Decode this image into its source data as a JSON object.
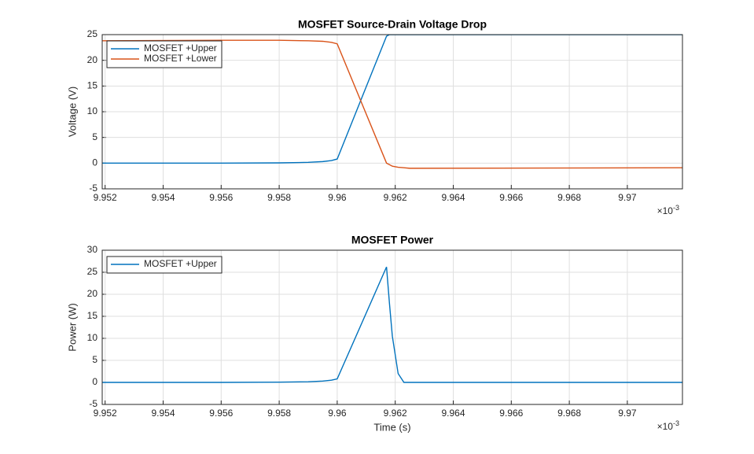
{
  "chart_data": [
    {
      "type": "line",
      "title": "MOSFET Source-Drain Voltage Drop",
      "y_label": "Voltage (V)",
      "x": [
        9.9519,
        9.956,
        9.958,
        9.959,
        9.9595,
        9.9598,
        9.96,
        9.9617,
        9.9618,
        9.9619,
        9.9621,
        9.9623,
        9.9625,
        9.9719
      ],
      "series": [
        {
          "name": "MOSFET +Upper",
          "color": "#0072BD",
          "values": [
            0,
            0,
            0.05,
            0.15,
            0.3,
            0.5,
            0.8,
            24.7,
            25,
            25,
            25,
            25,
            25,
            25
          ]
        },
        {
          "name": "MOSFET +Lower",
          "color": "#D95319",
          "values": [
            23.8,
            23.9,
            23.9,
            23.8,
            23.7,
            23.5,
            23.2,
            0,
            -0.3,
            -0.6,
            -0.8,
            -0.9,
            -1,
            -0.9
          ]
        }
      ],
      "xlim": [
        9.9519,
        9.9719
      ],
      "xticks": [
        9.952,
        9.954,
        9.956,
        9.958,
        9.96,
        9.962,
        9.964,
        9.966,
        9.968,
        9.97
      ],
      "x_multiplier": {
        "base": "×10",
        "exponent": "-3"
      },
      "ylim": [
        -5,
        25
      ],
      "yticks": [
        -5,
        0,
        5,
        10,
        15,
        20,
        25
      ],
      "grid": true,
      "legend": "northwest"
    },
    {
      "type": "line",
      "title": "MOSFET Power",
      "y_label": "Power (W)",
      "x_label": "Time (s)",
      "x": [
        9.9519,
        9.956,
        9.958,
        9.959,
        9.9595,
        9.9598,
        9.96,
        9.9617,
        9.9618,
        9.9619,
        9.9621,
        9.9623,
        9.9625,
        9.9719
      ],
      "series": [
        {
          "name": "MOSFET +Upper",
          "color": "#0072BD",
          "values": [
            0,
            0,
            0.05,
            0.15,
            0.3,
            0.5,
            0.8,
            26.2,
            18,
            10.5,
            2,
            0,
            0,
            0
          ]
        }
      ],
      "xlim": [
        9.9519,
        9.9719
      ],
      "xticks": [
        9.952,
        9.954,
        9.956,
        9.958,
        9.96,
        9.962,
        9.964,
        9.966,
        9.968,
        9.97
      ],
      "x_multiplier": {
        "base": "×10",
        "exponent": "-3"
      },
      "ylim": [
        -5,
        30
      ],
      "yticks": [
        -5,
        0,
        5,
        10,
        15,
        20,
        25,
        30
      ],
      "grid": true,
      "legend": "northwest"
    }
  ]
}
